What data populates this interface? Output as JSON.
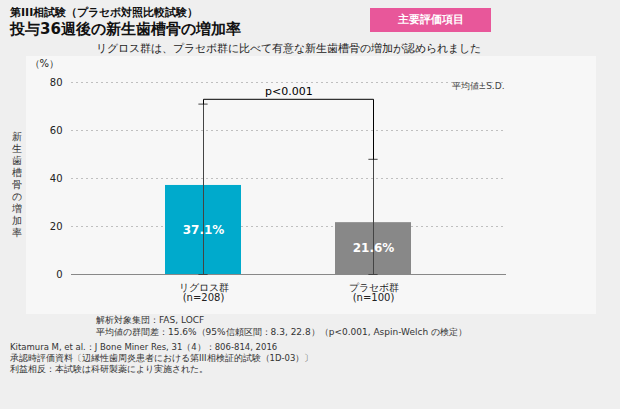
{
  "chart_data": {
    "type": "bar",
    "supertitle": "第III相試験（プラセボ対照比較試験）",
    "title": "投与36週後の新生歯槽骨の増加率",
    "badge": "主要評価項目",
    "subtitle": "リグロス群は、プラセボ群に比べて有意な新生歯槽骨の増加が認められました",
    "ylabel": "新\n生\n歯\n槽\n骨\nの\n増\n加\n率",
    "yunit": "（%）",
    "categories": [
      "リグロス群\n(n=208)",
      "プラセボ群\n(n=100)"
    ],
    "values": [
      37.1,
      21.6
    ],
    "value_labels": [
      "37.1%",
      "21.6%"
    ],
    "data_labels": true,
    "colors": [
      "#00AACC",
      "#888888"
    ],
    "error_lower": [
      0,
      0
    ],
    "error_upper": [
      71.0,
      48.0
    ],
    "bracket_y": 73,
    "bracket_ends": [
      71,
      48
    ],
    "bracket_label": "p<0.001",
    "annotation": "平均値±S.D.",
    "footnotes": [
      "解析対象集団：FAS, LOCF",
      "平均値の群間差：15.6%（95%信頼区間：8.3, 22.8）（p<0.001, Aspin-Welch の検定）"
    ],
    "references": [
      "Kitamura M, et al.：J Bone Miner Res, 31（4）：806-814, 2016",
      "承認時評価資料〔辺縁性歯周炎患者における第III相検証的試験（1D-03）〕",
      "利益相反：本試験は科研製薬により実施された。"
    ],
    "ylim": [
      0,
      80
    ],
    "yticks": [
      0,
      20,
      40,
      60,
      80
    ],
    "grid": true
  }
}
